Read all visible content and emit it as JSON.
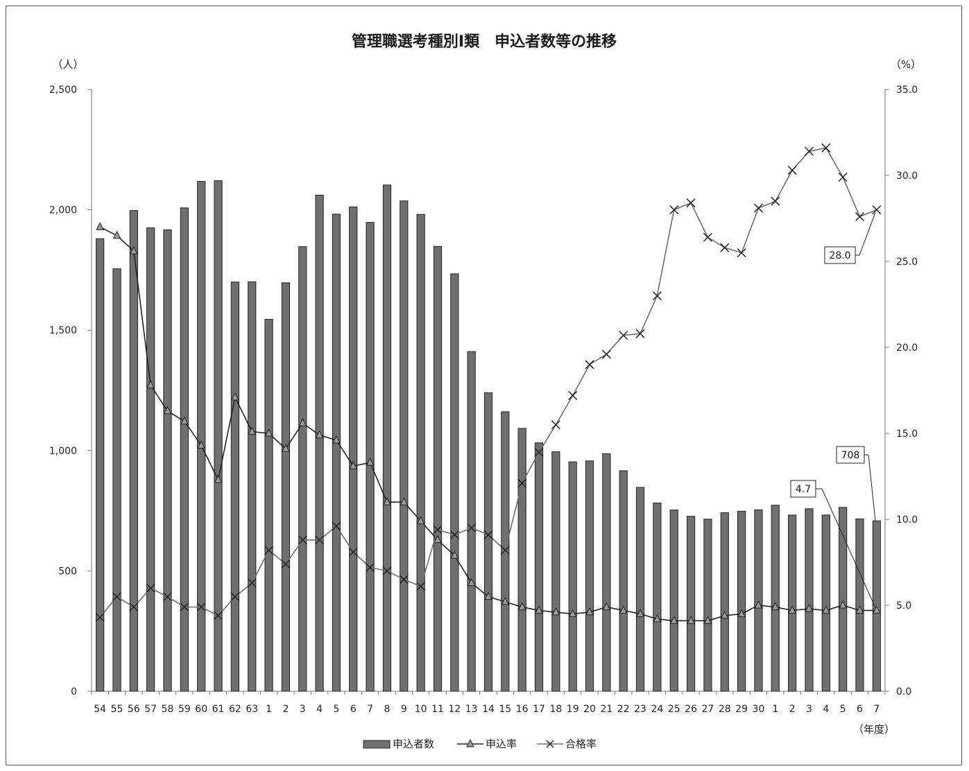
{
  "chart_data": {
    "type": "bar",
    "title": "管理職選考種別Ⅰ類　申込者数等の推移",
    "y_left_unit": "（人）",
    "y_right_unit": "（%）",
    "x_unit": "（年度）",
    "ylim_left": [
      0,
      2500
    ],
    "ylim_right": [
      0,
      35
    ],
    "y_left_ticks": [
      "0",
      "500",
      "1,000",
      "1,500",
      "2,000",
      "2,500"
    ],
    "y_right_ticks": [
      "0.0",
      "5.0",
      "10.0",
      "15.0",
      "20.0",
      "25.0",
      "30.0",
      "35.0"
    ],
    "categories": [
      "54",
      "55",
      "56",
      "57",
      "58",
      "59",
      "60",
      "61",
      "62",
      "63",
      "1",
      "2",
      "3",
      "4",
      "5",
      "6",
      "7",
      "8",
      "9",
      "10",
      "11",
      "12",
      "13",
      "14",
      "15",
      "16",
      "17",
      "18",
      "19",
      "20",
      "21",
      "22",
      "23",
      "24",
      "25",
      "26",
      "27",
      "28",
      "29",
      "30",
      "1",
      "2",
      "3",
      "4",
      "5",
      "6",
      "7"
    ],
    "legend": [
      "申込者数",
      "申込率",
      "合格率"
    ],
    "series": [
      {
        "name": "申込者数",
        "kind": "bar",
        "axis": "left",
        "color": "#707070",
        "values": [
          1880,
          1755,
          1997,
          1925,
          1917,
          2008,
          2118,
          2121,
          1700,
          1701,
          1545,
          1697,
          1847,
          2061,
          1982,
          2012,
          1948,
          2103,
          2037,
          1981,
          1848,
          1734,
          1411,
          1240,
          1161,
          1092,
          1032,
          995,
          953,
          957,
          987,
          916,
          847,
          782,
          753,
          727,
          715,
          742,
          748,
          754,
          773,
          732,
          758,
          732,
          764,
          716,
          708
        ]
      },
      {
        "name": "申込率",
        "kind": "line",
        "axis": "right",
        "marker": "triangle",
        "color": "#222222",
        "values": [
          27.0,
          26.5,
          25.6,
          17.8,
          16.3,
          15.7,
          14.3,
          12.3,
          17.1,
          15.1,
          15.0,
          14.1,
          15.6,
          14.9,
          14.6,
          13.1,
          13.3,
          11.0,
          11.0,
          9.9,
          8.8,
          7.9,
          6.3,
          5.5,
          5.2,
          4.9,
          4.7,
          4.6,
          4.5,
          4.6,
          4.9,
          4.7,
          4.5,
          4.2,
          4.1,
          4.1,
          4.1,
          4.4,
          4.5,
          5.0,
          4.9,
          4.7,
          4.8,
          4.7,
          5.0,
          4.7,
          4.7
        ]
      },
      {
        "name": "合格率",
        "kind": "line",
        "axis": "right",
        "marker": "x",
        "color": "#6e6e6e",
        "values": [
          4.3,
          5.5,
          4.9,
          6.0,
          5.5,
          4.9,
          4.9,
          4.4,
          5.5,
          6.3,
          8.2,
          7.4,
          8.8,
          8.8,
          9.6,
          8.1,
          7.2,
          7.0,
          6.5,
          6.1,
          9.4,
          9.1,
          9.5,
          9.1,
          8.2,
          12.1,
          13.9,
          15.5,
          17.2,
          19.0,
          19.6,
          20.7,
          20.8,
          23.0,
          28.0,
          28.4,
          26.4,
          25.8,
          25.5,
          28.1,
          28.5,
          30.3,
          31.4,
          31.6,
          29.9,
          27.6,
          28.0
        ]
      }
    ],
    "callouts": [
      {
        "label": "708",
        "series": "申込者数"
      },
      {
        "label": "4.7",
        "series": "申込率"
      },
      {
        "label": "28.0",
        "series": "合格率"
      }
    ]
  }
}
